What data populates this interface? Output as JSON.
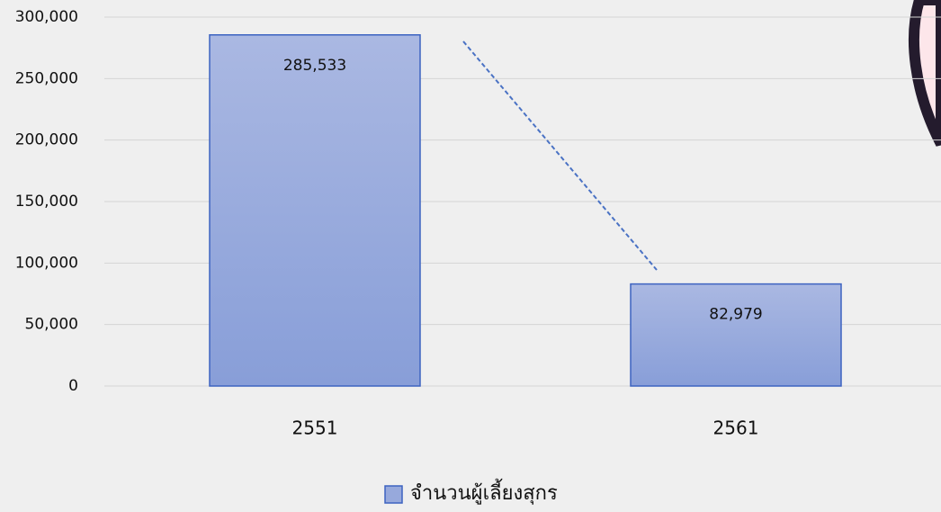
{
  "chart_data": {
    "type": "bar",
    "categories": [
      "2551",
      "2561"
    ],
    "series": [
      {
        "name": "จำนวนผู้เลี้ยงสุกร",
        "color": "#97a9dc",
        "values": [
          285533,
          82979
        ],
        "value_labels": [
          "285,533",
          "82,979"
        ]
      }
    ],
    "ylim": [
      0,
      300000
    ],
    "yticks": [
      0,
      {
        "value": 50000,
        "label": "50,000"
      },
      {
        "value": 100000,
        "label": "100,000"
      },
      {
        "value": 150000,
        "label": "150,000"
      },
      {
        "value": 200000,
        "label": "200,000"
      },
      {
        "value": 250000,
        "label": "250,000"
      },
      {
        "value": 300000,
        "label": "300,000"
      }
    ],
    "grid": true,
    "legend": "bottom"
  }
}
